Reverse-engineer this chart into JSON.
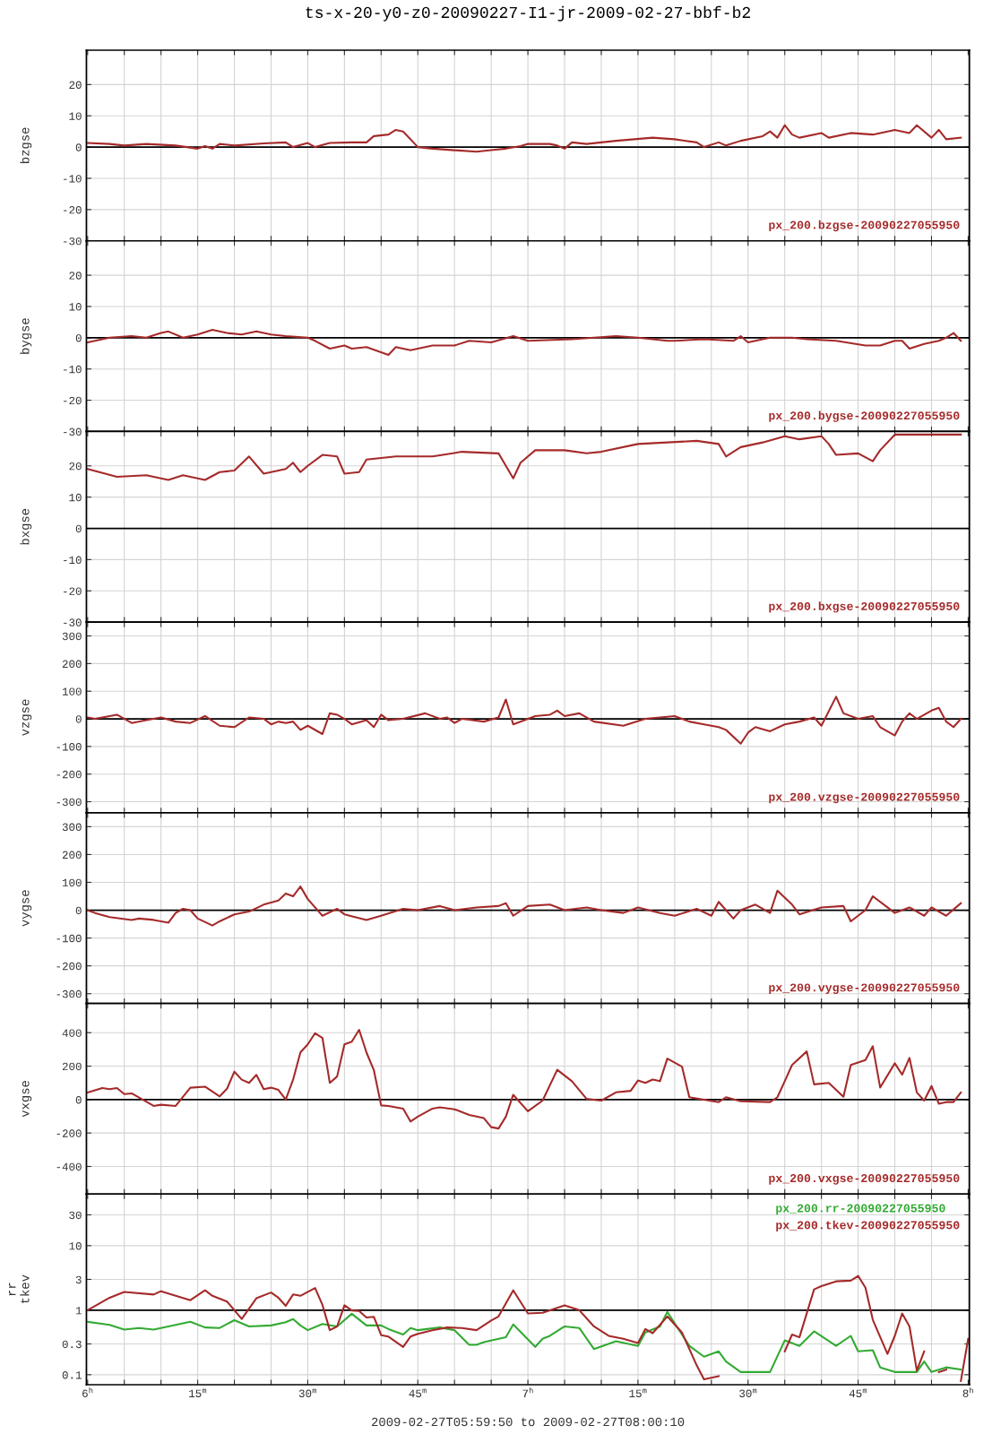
{
  "chart_data": [
    {
      "type": "line",
      "title": "ts-x-20-y0-z0-20090227-I1-jr-2009-02-27-bbf-b2",
      "ylabel": "bzgse",
      "tick_labels": "y",
      "grid": true,
      "legend": "bottom right",
      "xlim": [
        "2009-02-27T05:59:50",
        "2009-02-27T08:00:10"
      ],
      "ylim": [
        -30,
        31
      ],
      "yticks": [
        -30,
        -20,
        -10,
        0,
        10,
        20
      ],
      "ref_lines": [
        {
          "axis": "y",
          "value": 0,
          "color": "#000000"
        }
      ],
      "series": [
        {
          "name": "px_200.bzgse-20090227055950",
          "color": "#a52a2a",
          "x": [
            "2009-02-27T06:00",
            "2009-02-27T06:03",
            "2009-02-27T06:05",
            "2009-02-27T06:08",
            "2009-02-27T06:12",
            "2009-02-27T06:15",
            "2009-02-27T06:16",
            "2009-02-27T06:17",
            "2009-02-27T06:18",
            "2009-02-27T06:20",
            "2009-02-27T06:24",
            "2009-02-27T06:27",
            "2009-02-27T06:28",
            "2009-02-27T06:30",
            "2009-02-27T06:31",
            "2009-02-27T06:33",
            "2009-02-27T06:36",
            "2009-02-27T06:38",
            "2009-02-27T06:39",
            "2009-02-27T06:41",
            "2009-02-27T06:42",
            "2009-02-27T06:43",
            "2009-02-27T06:45",
            "2009-02-27T06:47",
            "2009-02-27T06:50",
            "2009-02-27T06:53",
            "2009-02-27T06:55",
            "2009-02-27T06:57",
            "2009-02-27T06:59",
            "2009-02-27T07:00",
            "2009-02-27T07:03",
            "2009-02-27T07:04",
            "2009-02-27T07:05",
            "2009-02-27T07:06",
            "2009-02-27T07:08",
            "2009-02-27T07:12",
            "2009-02-27T07:17",
            "2009-02-27T07:20",
            "2009-02-27T07:23",
            "2009-02-27T07:24",
            "2009-02-27T07:26",
            "2009-02-27T07:27",
            "2009-02-27T07:29",
            "2009-02-27T07:32",
            "2009-02-27T07:33",
            "2009-02-27T07:34",
            "2009-02-27T07:35",
            "2009-02-27T07:36",
            "2009-02-27T07:37",
            "2009-02-27T07:40",
            "2009-02-27T07:41",
            "2009-02-27T07:44",
            "2009-02-27T07:47",
            "2009-02-27T07:50",
            "2009-02-27T07:52",
            "2009-02-27T07:53",
            "2009-02-27T07:55",
            "2009-02-27T07:56",
            "2009-02-27T07:57",
            "2009-02-27T07:59"
          ],
          "values": [
            1.3,
            1.0,
            0.5,
            1.0,
            0.5,
            -0.5,
            0.3,
            -0.5,
            1.0,
            0.5,
            1.2,
            1.5,
            0,
            1.3,
            0,
            1.3,
            1.5,
            1.5,
            3.5,
            4,
            5.5,
            5,
            0,
            -0.5,
            -1,
            -1.5,
            -1,
            -0.5,
            0.3,
            1,
            1,
            0.5,
            -0.5,
            1.5,
            1,
            2,
            3,
            2.5,
            1.5,
            0,
            1.5,
            0.5,
            2,
            3.5,
            5,
            3,
            7,
            4,
            3,
            4.5,
            3,
            4.5,
            4,
            5.5,
            4.5,
            7,
            3,
            5.5,
            2.5,
            3
          ]
        }
      ]
    },
    {
      "type": "line",
      "ylabel": "bygse",
      "tick_labels": "y",
      "grid": true,
      "legend": "bottom right",
      "xlim": [
        "2009-02-27T05:59:50",
        "2009-02-27T08:00:10"
      ],
      "ylim": [
        -30,
        31
      ],
      "yticks": [
        -30,
        -20,
        -10,
        0,
        10,
        20
      ],
      "ref_lines": [
        {
          "axis": "y",
          "value": 0,
          "color": "#000000"
        }
      ],
      "series": [
        {
          "name": "px_200.bygse-20090227055950",
          "color": "#a52a2a",
          "x": [
            "2009-02-27T06:00",
            "2009-02-27T06:03",
            "2009-02-27T06:06",
            "2009-02-27T06:08",
            "2009-02-27T06:10",
            "2009-02-27T06:11",
            "2009-02-27T06:13",
            "2009-02-27T06:15",
            "2009-02-27T06:17",
            "2009-02-27T06:19",
            "2009-02-27T06:21",
            "2009-02-27T06:23",
            "2009-02-27T06:25",
            "2009-02-27T06:27",
            "2009-02-27T06:30",
            "2009-02-27T06:31",
            "2009-02-27T06:33",
            "2009-02-27T06:35",
            "2009-02-27T06:36",
            "2009-02-27T06:38",
            "2009-02-27T06:41",
            "2009-02-27T06:42",
            "2009-02-27T06:44",
            "2009-02-27T06:47",
            "2009-02-27T06:50",
            "2009-02-27T06:52",
            "2009-02-27T06:55",
            "2009-02-27T06:58",
            "2009-02-27T07:00",
            "2009-02-27T07:06",
            "2009-02-27T07:09",
            "2009-02-27T07:12",
            "2009-02-27T07:15",
            "2009-02-27T07:19",
            "2009-02-27T07:20",
            "2009-02-27T07:24",
            "2009-02-27T07:28",
            "2009-02-27T07:29",
            "2009-02-27T07:30",
            "2009-02-27T07:33",
            "2009-02-27T07:36",
            "2009-02-27T07:38",
            "2009-02-27T07:42",
            "2009-02-27T07:46",
            "2009-02-27T07:48",
            "2009-02-27T07:50",
            "2009-02-27T07:51",
            "2009-02-27T07:52",
            "2009-02-27T07:54",
            "2009-02-27T07:56",
            "2009-02-27T07:57",
            "2009-02-27T07:58",
            "2009-02-27T07:59"
          ],
          "values": [
            -1.5,
            0,
            0.5,
            0,
            1.5,
            2,
            0,
            1,
            2.5,
            1.5,
            1,
            2,
            1,
            0.5,
            0,
            -1,
            -3.5,
            -2.5,
            -3.5,
            -3,
            -5.5,
            -3,
            -4,
            -2.5,
            -2.5,
            -1,
            -1.5,
            0.5,
            -1,
            -0.5,
            0,
            0.5,
            0,
            -1,
            -1,
            -0.5,
            -1,
            0.5,
            -1.5,
            0,
            0,
            -0.5,
            -1,
            -2.5,
            -2.5,
            -1,
            -1,
            -3.5,
            -2,
            -1,
            0,
            1.5,
            -1
          ]
        }
      ]
    },
    {
      "type": "line",
      "ylabel": "bxgse",
      "tick_labels": "y",
      "grid": true,
      "legend": "bottom right",
      "xlim": [
        "2009-02-27T05:59:50",
        "2009-02-27T08:00:10"
      ],
      "ylim": [
        -30,
        31
      ],
      "yticks": [
        -30,
        -20,
        -10,
        0,
        10,
        20
      ],
      "ref_lines": [
        {
          "axis": "y",
          "value": 0,
          "color": "#000000"
        }
      ],
      "series": [
        {
          "name": "px_200.bxgse-20090227055950",
          "color": "#a52a2a",
          "x": [
            "2009-02-27T06:00",
            "2009-02-27T06:04",
            "2009-02-27T06:08",
            "2009-02-27T06:11",
            "2009-02-27T06:13",
            "2009-02-27T06:16",
            "2009-02-27T06:18",
            "2009-02-27T06:20",
            "2009-02-27T06:22",
            "2009-02-27T06:24",
            "2009-02-27T06:27",
            "2009-02-27T06:28",
            "2009-02-27T06:29",
            "2009-02-27T06:30",
            "2009-02-27T06:32",
            "2009-02-27T06:34",
            "2009-02-27T06:35",
            "2009-02-27T06:37",
            "2009-02-27T06:38",
            "2009-02-27T06:42",
            "2009-02-27T06:47",
            "2009-02-27T06:51",
            "2009-02-27T06:56",
            "2009-02-27T06:57",
            "2009-02-27T06:58",
            "2009-02-27T06:59",
            "2009-02-27T07:01",
            "2009-02-27T07:05",
            "2009-02-27T07:08",
            "2009-02-27T07:10",
            "2009-02-27T07:15",
            "2009-02-27T07:19",
            "2009-02-27T07:23",
            "2009-02-27T07:26",
            "2009-02-27T07:27",
            "2009-02-27T07:29",
            "2009-02-27T07:32",
            "2009-02-27T07:35",
            "2009-02-27T07:37",
            "2009-02-27T07:40",
            "2009-02-27T07:41",
            "2009-02-27T07:42",
            "2009-02-27T07:45",
            "2009-02-27T07:47",
            "2009-02-27T07:48",
            "2009-02-27T07:50",
            "2009-02-27T07:59"
          ],
          "values": [
            19,
            16.5,
            17,
            15.5,
            17,
            15.5,
            18,
            18.5,
            23,
            17.5,
            19,
            21,
            18,
            20,
            23.5,
            23,
            17.5,
            18,
            22,
            23,
            23,
            24.5,
            24,
            20,
            16,
            21,
            25,
            25,
            24,
            24.5,
            27,
            27.5,
            28,
            27,
            23,
            26,
            27.5,
            29.5,
            28.5,
            29.5,
            27,
            23.5,
            24,
            21.5,
            25,
            30,
            30
          ]
        }
      ]
    },
    {
      "type": "line",
      "ylabel": "vzgse",
      "tick_labels": "y",
      "grid": true,
      "legend": "bottom right",
      "xlim": [
        "2009-02-27T05:59:50",
        "2009-02-27T08:00:10"
      ],
      "ylim": [
        -340,
        350
      ],
      "yticks": [
        -300,
        -200,
        -100,
        0,
        100,
        200,
        300
      ],
      "ref_lines": [
        {
          "axis": "y",
          "value": 0,
          "color": "#000000"
        }
      ],
      "series": [
        {
          "name": "px_200.vzgse-20090227055950",
          "color": "#a52a2a",
          "x": [
            "2009-02-27T06:00",
            "2009-02-27T06:01",
            "2009-02-27T06:04",
            "2009-02-27T06:06",
            "2009-02-27T06:08",
            "2009-02-27T06:10",
            "2009-02-27T06:12",
            "2009-02-27T06:14",
            "2009-02-27T06:16",
            "2009-02-27T06:18",
            "2009-02-27T06:20",
            "2009-02-27T06:22",
            "2009-02-27T06:24",
            "2009-02-27T06:25",
            "2009-02-27T06:26",
            "2009-02-27T06:27",
            "2009-02-27T06:28",
            "2009-02-27T06:29",
            "2009-02-27T06:30",
            "2009-02-27T06:32",
            "2009-02-27T06:33",
            "2009-02-27T06:34",
            "2009-02-27T06:35",
            "2009-02-27T06:36",
            "2009-02-27T06:38",
            "2009-02-27T06:39",
            "2009-02-27T06:40",
            "2009-02-27T06:41",
            "2009-02-27T06:43",
            "2009-02-27T06:46",
            "2009-02-27T06:48",
            "2009-02-27T06:49",
            "2009-02-27T06:50",
            "2009-02-27T06:51",
            "2009-02-27T06:54",
            "2009-02-27T06:56",
            "2009-02-27T06:57",
            "2009-02-27T06:58",
            "2009-02-27T07:01",
            "2009-02-27T07:03",
            "2009-02-27T07:04",
            "2009-02-27T07:05",
            "2009-02-27T07:07",
            "2009-02-27T07:09",
            "2009-02-27T07:13",
            "2009-02-27T07:16",
            "2009-02-27T07:20",
            "2009-02-27T07:22",
            "2009-02-27T07:24",
            "2009-02-27T07:26",
            "2009-02-27T07:27",
            "2009-02-27T07:29",
            "2009-02-27T07:30",
            "2009-02-27T07:31",
            "2009-02-27T07:33",
            "2009-02-27T07:35",
            "2009-02-27T07:37",
            "2009-02-27T07:39",
            "2009-02-27T07:40",
            "2009-02-27T07:42",
            "2009-02-27T07:43",
            "2009-02-27T07:45",
            "2009-02-27T07:47",
            "2009-02-27T07:48",
            "2009-02-27T07:50",
            "2009-02-27T07:51",
            "2009-02-27T07:52",
            "2009-02-27T07:53",
            "2009-02-27T07:55",
            "2009-02-27T07:56",
            "2009-02-27T07:57",
            "2009-02-27T07:58",
            "2009-02-27T07:59"
          ],
          "values": [
            5,
            0,
            15,
            -15,
            -5,
            5,
            -10,
            -15,
            10,
            -25,
            -30,
            5,
            0,
            -20,
            -10,
            -15,
            -10,
            -40,
            -25,
            -55,
            20,
            15,
            0,
            -20,
            -5,
            -30,
            15,
            -5,
            0,
            20,
            0,
            5,
            -15,
            0,
            -10,
            5,
            70,
            -20,
            10,
            15,
            30,
            10,
            20,
            -10,
            -25,
            0,
            10,
            -10,
            -20,
            -30,
            -40,
            -90,
            -50,
            -30,
            -45,
            -20,
            -10,
            5,
            -25,
            80,
            20,
            0,
            10,
            -30,
            -60,
            -10,
            20,
            0,
            30,
            40,
            -10,
            -30,
            0
          ]
        }
      ]
    },
    {
      "type": "line",
      "ylabel": "vygse",
      "tick_labels": "y",
      "grid": true,
      "legend": "bottom right",
      "xlim": [
        "2009-02-27T05:59:50",
        "2009-02-27T08:00:10"
      ],
      "ylim": [
        -335,
        350
      ],
      "yticks": [
        -300,
        -200,
        -100,
        0,
        100,
        200,
        300
      ],
      "ref_lines": [
        {
          "axis": "y",
          "value": 0,
          "color": "#000000"
        }
      ],
      "series": [
        {
          "name": "px_200.vygse-20090227055950",
          "color": "#a52a2a",
          "x": [
            "2009-02-27T06:00",
            "2009-02-27T06:01",
            "2009-02-27T06:03",
            "2009-02-27T06:06",
            "2009-02-27T06:07",
            "2009-02-27T06:09",
            "2009-02-27T06:11",
            "2009-02-27T06:12",
            "2009-02-27T06:13",
            "2009-02-27T06:14",
            "2009-02-27T06:15",
            "2009-02-27T06:17",
            "2009-02-27T06:18",
            "2009-02-27T06:20",
            "2009-02-27T06:22",
            "2009-02-27T06:24",
            "2009-02-27T06:26",
            "2009-02-27T06:27",
            "2009-02-27T06:28",
            "2009-02-27T06:29",
            "2009-02-27T06:30",
            "2009-02-27T06:32",
            "2009-02-27T06:34",
            "2009-02-27T06:35",
            "2009-02-27T06:38",
            "2009-02-27T06:40",
            "2009-02-27T06:43",
            "2009-02-27T06:45",
            "2009-02-27T06:48",
            "2009-02-27T06:50",
            "2009-02-27T06:53",
            "2009-02-27T06:56",
            "2009-02-27T06:57",
            "2009-02-27T06:58",
            "2009-02-27T07:00",
            "2009-02-27T07:03",
            "2009-02-27T07:05",
            "2009-02-27T07:08",
            "2009-02-27T07:10",
            "2009-02-27T07:13",
            "2009-02-27T07:15",
            "2009-02-27T07:18",
            "2009-02-27T07:20",
            "2009-02-27T07:23",
            "2009-02-27T07:25",
            "2009-02-27T07:26",
            "2009-02-27T07:28",
            "2009-02-27T07:29",
            "2009-02-27T07:31",
            "2009-02-27T07:33",
            "2009-02-27T07:34",
            "2009-02-27T07:36",
            "2009-02-27T07:37",
            "2009-02-27T07:40",
            "2009-02-27T07:43",
            "2009-02-27T07:44",
            "2009-02-27T07:46",
            "2009-02-27T07:47",
            "2009-02-27T07:49",
            "2009-02-27T07:50",
            "2009-02-27T07:52",
            "2009-02-27T07:54",
            "2009-02-27T07:55",
            "2009-02-27T07:57",
            "2009-02-27T07:59"
          ],
          "values": [
            0,
            -10,
            -25,
            -35,
            -30,
            -35,
            -45,
            -10,
            5,
            0,
            -30,
            -55,
            -40,
            -15,
            -5,
            20,
            35,
            60,
            50,
            85,
            40,
            -20,
            5,
            -15,
            -35,
            -20,
            5,
            0,
            15,
            0,
            10,
            15,
            25,
            -20,
            15,
            20,
            0,
            10,
            0,
            -10,
            10,
            -10,
            -20,
            5,
            -20,
            30,
            -30,
            0,
            20,
            -10,
            70,
            20,
            -15,
            10,
            15,
            -40,
            0,
            50,
            10,
            -10,
            10,
            -20,
            10,
            -20,
            25
          ]
        }
      ]
    },
    {
      "type": "line",
      "ylabel": "vxgse",
      "tick_labels": "y",
      "grid": true,
      "legend": "bottom right",
      "xlim": [
        "2009-02-27T05:59:50",
        "2009-02-27T08:00:10"
      ],
      "ylim": [
        -565,
        575
      ],
      "yticks": [
        -400,
        -200,
        0,
        200,
        400
      ],
      "ref_lines": [
        {
          "axis": "y",
          "value": 0,
          "color": "#000000"
        }
      ],
      "series": [
        {
          "name": "px_200.vxgse-20090227055950",
          "color": "#a52a2a",
          "x": [
            "2009-02-27T06:00",
            "2009-02-27T06:02",
            "2009-02-27T06:03",
            "2009-02-27T06:04",
            "2009-02-27T06:05",
            "2009-02-27T06:06",
            "2009-02-27T06:09",
            "2009-02-27T06:10",
            "2009-02-27T06:12",
            "2009-02-27T06:14",
            "2009-02-27T06:16",
            "2009-02-27T06:18",
            "2009-02-27T06:19",
            "2009-02-27T06:20",
            "2009-02-27T06:21",
            "2009-02-27T06:22",
            "2009-02-27T06:23",
            "2009-02-27T06:24",
            "2009-02-27T06:25",
            "2009-02-27T06:26",
            "2009-02-27T06:27",
            "2009-02-27T06:28",
            "2009-02-27T06:29",
            "2009-02-27T06:30",
            "2009-02-27T06:31",
            "2009-02-27T06:32",
            "2009-02-27T06:33",
            "2009-02-27T06:34",
            "2009-02-27T06:35",
            "2009-02-27T06:36",
            "2009-02-27T06:37",
            "2009-02-27T06:38",
            "2009-02-27T06:39",
            "2009-02-27T06:40",
            "2009-02-27T06:41",
            "2009-02-27T06:43",
            "2009-02-27T06:44",
            "2009-02-27T06:45",
            "2009-02-27T06:47",
            "2009-02-27T06:48",
            "2009-02-27T06:50",
            "2009-02-27T06:52",
            "2009-02-27T06:54",
            "2009-02-27T06:55",
            "2009-02-27T06:56",
            "2009-02-27T06:57",
            "2009-02-27T06:58",
            "2009-02-27T07:00",
            "2009-02-27T07:02",
            "2009-02-27T07:04",
            "2009-02-27T07:06",
            "2009-02-27T07:08",
            "2009-02-27T07:10",
            "2009-02-27T07:12",
            "2009-02-27T07:14",
            "2009-02-27T07:15",
            "2009-02-27T07:16",
            "2009-02-27T07:17",
            "2009-02-27T07:18",
            "2009-02-27T07:19",
            "2009-02-27T07:21",
            "2009-02-27T07:22",
            "2009-02-27T07:26",
            "2009-02-27T07:27",
            "2009-02-27T07:29",
            "2009-02-27T07:33",
            "2009-02-27T07:34",
            "2009-02-27T07:35",
            "2009-02-27T07:36",
            "2009-02-27T07:38",
            "2009-02-27T07:39",
            "2009-02-27T07:41",
            "2009-02-27T07:43",
            "2009-02-27T07:44",
            "2009-02-27T07:46",
            "2009-02-27T07:47",
            "2009-02-27T07:48",
            "2009-02-27T07:50",
            "2009-02-27T07:51",
            "2009-02-27T07:52",
            "2009-02-27T07:53",
            "2009-02-27T07:54",
            "2009-02-27T07:55",
            "2009-02-27T07:56",
            "2009-02-27T07:57",
            "2009-02-27T07:58",
            "2009-02-27T07:59"
          ],
          "values": [
            42,
            69,
            62,
            69,
            33,
            37,
            -38,
            -31,
            -38,
            71,
            77,
            19,
            65,
            167,
            119,
            100,
            148,
            62,
            71,
            58,
            0,
            119,
            282,
            330,
            397,
            369,
            100,
            138,
            330,
            346,
            417,
            282,
            177,
            -35,
            -38,
            -54,
            -131,
            -102,
            -54,
            -46,
            -58,
            -92,
            -111,
            -165,
            -173,
            -102,
            29,
            -70,
            -6,
            178,
            110,
            4,
            -6,
            43,
            52,
            114,
            100,
            120,
            110,
            245,
            197,
            14,
            -15,
            14,
            -10,
            -15,
            14,
            110,
            207,
            288,
            91,
            100,
            17,
            207,
            236,
            319,
            72,
            217,
            149,
            249,
            43,
            -6,
            81,
            -25,
            -15,
            -15,
            43
          ]
        }
      ]
    },
    {
      "type": "line",
      "ylabel": "rr\ntkev",
      "xlabel": "2009-02-27T05:59:50 to 2009-02-27T08:00:10",
      "log": "y",
      "grid": true,
      "legend": "top right",
      "xlim": [
        "2009-02-27T05:59:50",
        "2009-02-27T08:00:10"
      ],
      "xticks": [
        {
          "value": "2009-02-27T06:00",
          "label": "6$^{h}$"
        },
        {
          "value": "2009-02-27T06:05",
          "label": null
        },
        {
          "value": "2009-02-27T06:10",
          "label": null
        },
        {
          "value": "2009-02-27T06:15",
          "label": "15$^{m}$"
        },
        {
          "value": "2009-02-27T06:20",
          "label": null
        },
        {
          "value": "2009-02-27T06:25",
          "label": null
        },
        {
          "value": "2009-02-27T06:30",
          "label": "30$^{m}$"
        },
        {
          "value": "2009-02-27T06:35",
          "label": null
        },
        {
          "value": "2009-02-27T06:40",
          "label": null
        },
        {
          "value": "2009-02-27T06:45",
          "label": "45$^{m}$"
        },
        {
          "value": "2009-02-27T06:50",
          "label": null
        },
        {
          "value": "2009-02-27T06:55",
          "label": null
        },
        {
          "value": "2009-02-27T07:00",
          "label": "7$^{h}$"
        },
        {
          "value": "2009-02-27T07:05",
          "label": null
        },
        {
          "value": "2009-02-27T07:10",
          "label": null
        },
        {
          "value": "2009-02-27T07:15",
          "label": "15$^{m}$"
        },
        {
          "value": "2009-02-27T07:20",
          "label": null
        },
        {
          "value": "2009-02-27T07:25",
          "label": null
        },
        {
          "value": "2009-02-27T07:30",
          "label": "30$^{m}$"
        },
        {
          "value": "2009-02-27T07:35",
          "label": null
        },
        {
          "value": "2009-02-27T07:40",
          "label": null
        },
        {
          "value": "2009-02-27T07:45",
          "label": "45$^{m}$"
        },
        {
          "value": "2009-02-27T07:50",
          "label": null
        },
        {
          "value": "2009-02-27T07:55",
          "label": null
        },
        {
          "value": "2009-02-27T08:00",
          "label": "8$^{h}$"
        }
      ],
      "ylim": [
        0.07,
        63
      ],
      "yticks": [
        0.1,
        0.3,
        1,
        3,
        10,
        30
      ],
      "ref_lines": [
        {
          "axis": "y",
          "value": 1,
          "color": "#000000"
        }
      ],
      "series": [
        {
          "name": "px_200.rr-20090227055950",
          "color": "#33aa33",
          "x": [
            "2009-02-27T06:00",
            "2009-02-27T06:03",
            "2009-02-27T06:05",
            "2009-02-27T06:07",
            "2009-02-27T06:09",
            "2009-02-27T06:14",
            "2009-02-27T06:16",
            "2009-02-27T06:18",
            "2009-02-27T06:20",
            "2009-02-27T06:22",
            "2009-02-27T06:25",
            "2009-02-27T06:27",
            "2009-02-27T06:28",
            "2009-02-27T06:29",
            "2009-02-27T06:30",
            "2009-02-27T06:32",
            "2009-02-27T06:34",
            "2009-02-27T06:36",
            "2009-02-27T06:38",
            "2009-02-27T06:40",
            "2009-02-27T06:41",
            "2009-02-27T06:43",
            "2009-02-27T06:44",
            "2009-02-27T06:45",
            "2009-02-27T06:48",
            "2009-02-27T06:50",
            "2009-02-27T06:52",
            "2009-02-27T06:53",
            "2009-02-27T06:54",
            "2009-02-27T06:57",
            "2009-02-27T06:58",
            "2009-02-27T07:01",
            "2009-02-27T07:02",
            "2009-02-27T07:03",
            "2009-02-27T07:05",
            "2009-02-27T07:07",
            "2009-02-27T07:09",
            "2009-02-27T07:12",
            "2009-02-27T07:15",
            "2009-02-27T07:16",
            "2009-02-27T07:18",
            "2009-02-27T07:19",
            "2009-02-27T07:22",
            "2009-02-27T07:24",
            "2009-02-27T07:26",
            "2009-02-27T07:27",
            "2009-02-27T07:29",
            "2009-02-27T07:33",
            "2009-02-27T07:35",
            "2009-02-27T07:37",
            "2009-02-27T07:39",
            "2009-02-27T07:42",
            "2009-02-27T07:44",
            "2009-02-27T07:45",
            "2009-02-27T07:47",
            "2009-02-27T07:48",
            "2009-02-27T07:50",
            "2009-02-27T07:53",
            "2009-02-27T07:54",
            "2009-02-27T07:55",
            "2009-02-27T07:57",
            "2009-02-27T07:59"
          ],
          "values": [
            0.66,
            0.59,
            0.5,
            0.53,
            0.5,
            0.66,
            0.54,
            0.53,
            0.7,
            0.56,
            0.58,
            0.65,
            0.73,
            0.58,
            0.49,
            0.61,
            0.56,
            0.88,
            0.58,
            0.58,
            0.51,
            0.42,
            0.53,
            0.49,
            0.54,
            0.49,
            0.29,
            0.29,
            0.32,
            0.38,
            0.6,
            0.27,
            0.36,
            0.4,
            0.56,
            0.53,
            0.25,
            0.33,
            0.28,
            0.45,
            0.56,
            0.94,
            0.28,
            0.19,
            0.23,
            0.16,
            0.11,
            0.11,
            0.34,
            0.28,
            0.47,
            0.28,
            0.4,
            0.23,
            0.24,
            0.13,
            0.11,
            0.11,
            0.16,
            0.11,
            0.13,
            0.12
          ]
        },
        {
          "name": "px_200.tkev-20090227055950",
          "color": "#a52a2a",
          "x": [
            "2009-02-27T06:00",
            "2009-02-27T06:03",
            "2009-02-27T06:05",
            "2009-02-27T06:09",
            "2009-02-27T06:10",
            "2009-02-27T06:14",
            "2009-02-27T06:16",
            "2009-02-27T06:17",
            "2009-02-27T06:19",
            "2009-02-27T06:21",
            "2009-02-27T06:23",
            "2009-02-27T06:25",
            "2009-02-27T06:26",
            "2009-02-27T06:27",
            "2009-02-27T06:28",
            "2009-02-27T06:29",
            "2009-02-27T06:31",
            "2009-02-27T06:32",
            "2009-02-27T06:33",
            "2009-02-27T06:34",
            "2009-02-27T06:35",
            "2009-02-27T06:36",
            "2009-02-27T06:37",
            "2009-02-27T06:38",
            "2009-02-27T06:39",
            "2009-02-27T06:40",
            "2009-02-27T06:41",
            "2009-02-27T06:43",
            "2009-02-27T06:44",
            "2009-02-27T06:45",
            "2009-02-27T06:47",
            "2009-02-27T06:49",
            "2009-02-27T06:51",
            "2009-02-27T06:53",
            "2009-02-27T06:55",
            "2009-02-27T06:56",
            "2009-02-27T06:58",
            "2009-02-27T07:00",
            "2009-02-27T07:02",
            "2009-02-27T07:05",
            "2009-02-27T07:07",
            "2009-02-27T07:09",
            "2009-02-27T07:11",
            "2009-02-27T07:13",
            "2009-02-27T07:15",
            "2009-02-27T07:16",
            "2009-02-27T07:17",
            "2009-02-27T07:19",
            "2009-02-27T07:21",
            "2009-02-27T07:23",
            "2009-02-27T07:24",
            "2009-02-27T07:26",
            "2009-02-27T07:27",
            "2009-02-27T07:34",
            "2009-02-27T07:35",
            "2009-02-27T07:36",
            "2009-02-27T07:37",
            "2009-02-27T07:39",
            "2009-02-27T07:40",
            "2009-02-27T07:42",
            "2009-02-27T07:44",
            "2009-02-27T07:45",
            "2009-02-27T07:46",
            "2009-02-27T07:47",
            "2009-02-27T07:49",
            "2009-02-27T07:50",
            "2009-02-27T07:51",
            "2009-02-27T07:52",
            "2009-02-27T07:53",
            "2009-02-27T07:54",
            "2009-02-27T07:55",
            "2009-02-27T07:56",
            "2009-02-27T07:57",
            "2009-02-27T07:58",
            "2009-02-27T07:59",
            "2009-02-27T08:00"
          ],
          "values": [
            1.0,
            1.56,
            1.92,
            1.75,
            1.97,
            1.43,
            2.03,
            1.67,
            1.36,
            0.73,
            1.53,
            1.88,
            1.56,
            1.17,
            1.75,
            1.67,
            2.2,
            1.21,
            0.49,
            0.56,
            1.19,
            0.99,
            0.97,
            0.77,
            0.79,
            0.41,
            0.39,
            0.27,
            0.39,
            0.43,
            0.49,
            0.54,
            0.53,
            0.49,
            0.69,
            0.8,
            2.03,
            0.89,
            0.91,
            1.19,
            1.0,
            0.56,
            0.4,
            0.36,
            0.31,
            0.51,
            0.44,
            0.8,
            0.45,
            0.14,
            0.085,
            0.095,
            null,
            null,
            0.23,
            0.42,
            0.38,
            2.1,
            2.36,
            2.8,
            2.87,
            3.4,
            2.23,
            0.71,
            0.21,
            0.4,
            0.89,
            0.56,
            0.116,
            0.23,
            null,
            0.11,
            0.12,
            null,
            0.08,
            0.36
          ]
        }
      ]
    }
  ]
}
